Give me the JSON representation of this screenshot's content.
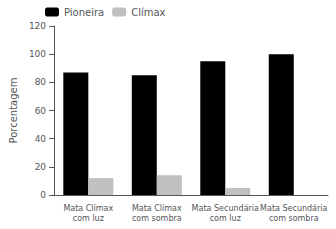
{
  "chart_data": {
    "type": "bar",
    "categories": [
      "Mata Clímax\ncom luz",
      "Mata Clímax\ncom sombra",
      "Mata Secundária\ncom luz",
      "Mata Secundária\ncom sombra"
    ],
    "series": [
      {
        "name": "Pioneira",
        "color": "#000000",
        "values": [
          87,
          85,
          95,
          100
        ]
      },
      {
        "name": "Clímax",
        "color": "#c0c0c0",
        "values": [
          12,
          14,
          5,
          0
        ]
      }
    ],
    "ylabel": "Porcentagem",
    "ylim": [
      0,
      120
    ],
    "yticks": [
      0,
      20,
      40,
      60,
      80,
      100,
      120
    ],
    "legend": "upper left",
    "grid": false
  }
}
